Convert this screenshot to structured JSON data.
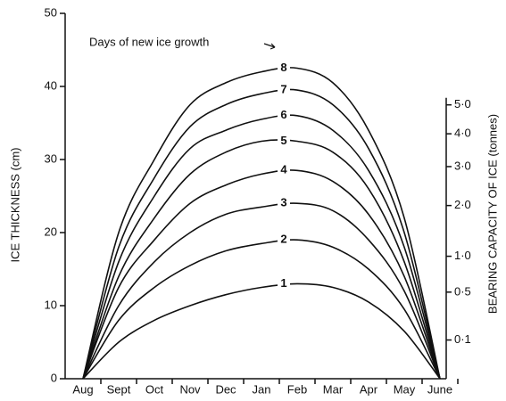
{
  "chart_data": {
    "type": "line",
    "annotation": "Days of new ice growth",
    "ylabel": "ICE THICKNESS (cm)",
    "y2label": "BEARING CAPACITY OF ICE (tonnes)",
    "categories": [
      "Aug",
      "Sept",
      "Oct",
      "Nov",
      "Dec",
      "Jan",
      "Feb",
      "Mar",
      "Apr",
      "May",
      "June"
    ],
    "series": [
      {
        "name": "1",
        "color": "#111111",
        "values": [
          0,
          5,
          8,
          10,
          11.5,
          12.5,
          13,
          12.5,
          10.5,
          6.5,
          0
        ]
      },
      {
        "name": "2",
        "color": "#111111",
        "values": [
          0,
          8,
          12.5,
          15.5,
          17.5,
          18.5,
          19,
          18,
          15,
          9.5,
          0
        ]
      },
      {
        "name": "3",
        "color": "#111111",
        "values": [
          0,
          10,
          16,
          20,
          22.5,
          23.5,
          24,
          23,
          19,
          12,
          0
        ]
      },
      {
        "name": "4",
        "color": "#111111",
        "values": [
          0,
          12.5,
          19,
          24,
          26.5,
          28,
          28.5,
          27,
          22.5,
          14,
          0
        ]
      },
      {
        "name": "5",
        "color": "#111111",
        "values": [
          0,
          14,
          22,
          28,
          31,
          32.5,
          32.5,
          31,
          26,
          16,
          0
        ]
      },
      {
        "name": "6",
        "color": "#111111",
        "values": [
          0,
          16,
          25,
          31.5,
          34,
          35.5,
          36,
          34,
          28.5,
          18,
          0
        ]
      },
      {
        "name": "7",
        "color": "#111111",
        "values": [
          0,
          18,
          27.5,
          34.5,
          37.5,
          39,
          39.5,
          37.5,
          31.5,
          20,
          0
        ]
      },
      {
        "name": "8",
        "color": "#111111",
        "values": [
          0,
          20,
          30,
          37.5,
          40.5,
          42,
          42.5,
          40.5,
          34,
          22,
          0
        ]
      }
    ],
    "ylim": [
      0,
      50
    ],
    "yticks": [
      0,
      10,
      20,
      30,
      40,
      50
    ],
    "y2lim": [
      0,
      8.9
    ],
    "y2scale": "sqrt",
    "y2ticks": [
      {
        "value": 0.1,
        "label": "0·1"
      },
      {
        "value": 0.5,
        "label": "0·5"
      },
      {
        "value": 1,
        "label": "1·0"
      },
      {
        "value": 2,
        "label": "2·0"
      },
      {
        "value": 3,
        "label": "3·0"
      },
      {
        "value": 4,
        "label": "4·0"
      },
      {
        "value": 5,
        "label": "5·0"
      }
    ]
  }
}
